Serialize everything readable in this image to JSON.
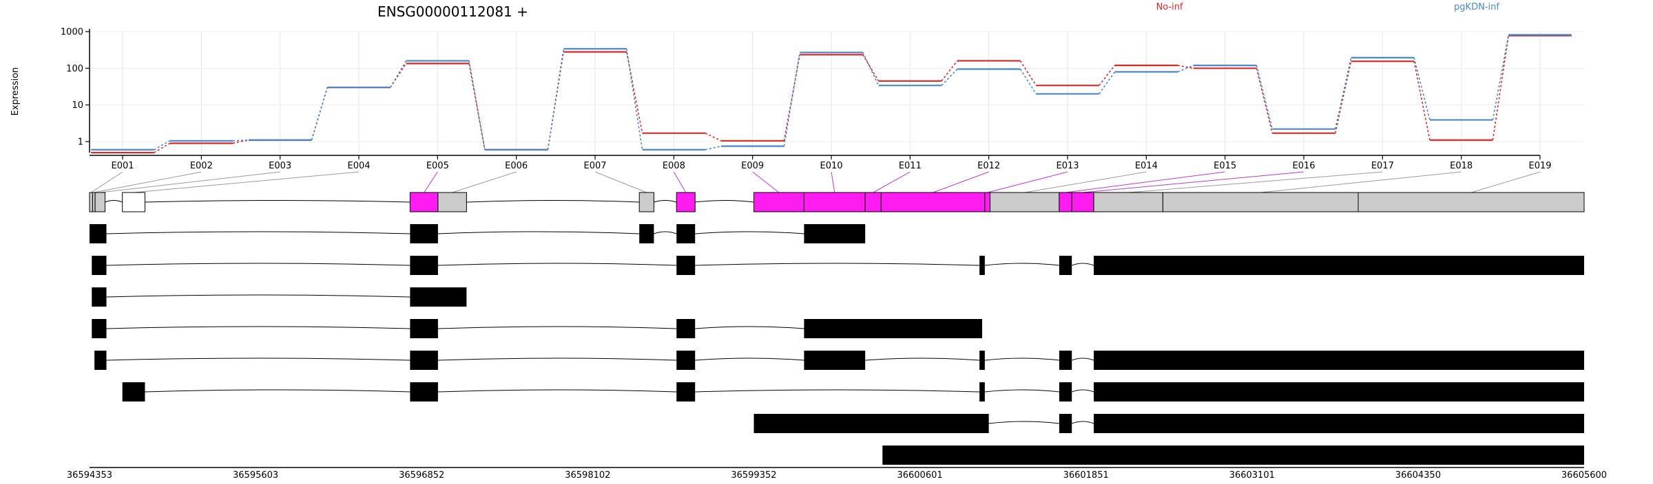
{
  "chart_data": {
    "type": "line",
    "title": "ENSG00000112081 +",
    "ylabel": "Expression",
    "y_scale": "log",
    "ylim": [
      0.5,
      1000
    ],
    "yticks": [
      1,
      10,
      100,
      1000
    ],
    "ytick_labels": [
      "1",
      "10",
      "100",
      "1000"
    ],
    "grid": true,
    "legend_position": "top",
    "categories": [
      "E001",
      "E002",
      "E003",
      "E004",
      "E005",
      "E006",
      "E007",
      "E008",
      "E009",
      "E010",
      "E011",
      "E012",
      "E013",
      "E014",
      "E015",
      "E016",
      "E017",
      "E018",
      "E019"
    ],
    "series": [
      {
        "name": "No-inf",
        "color": "#d62728",
        "values": [
          0.5,
          0.9,
          1.1,
          30,
          135,
          0.6,
          280,
          1.7,
          1.05,
          235,
          45,
          160,
          34,
          120,
          100,
          1.7,
          155,
          1.1,
          780
        ]
      },
      {
        "name": "pgKDN-inf",
        "color": "#4a86c8",
        "values": [
          0.6,
          1.05,
          1.1,
          30,
          160,
          0.6,
          340,
          0.6,
          0.75,
          270,
          34,
          95,
          20,
          80,
          120,
          2.2,
          195,
          3.9,
          820
        ]
      }
    ],
    "genomic_axis": {
      "min": 36594353,
      "max": 36605600,
      "tick_labels": [
        "36594353",
        "36595603",
        "36596852",
        "36598102",
        "36599352",
        "36600601",
        "36601851",
        "36603101",
        "36604350",
        "36605600"
      ]
    },
    "gene_model": {
      "exons": [
        {
          "id": "E001",
          "start": 36594353,
          "end": 36594376,
          "highlighted": false
        },
        {
          "id": "E002",
          "start": 36594376,
          "end": 36594395,
          "highlighted": false
        },
        {
          "id": "E003",
          "start": 36594395,
          "end": 36594470,
          "highlighted": false
        },
        {
          "id": "E004",
          "start": 36594600,
          "end": 36594770,
          "highlighted": false
        },
        {
          "id": "E005",
          "start": 36596765,
          "end": 36596975,
          "highlighted": true
        },
        {
          "id": "E006",
          "start": 36596975,
          "end": 36597190,
          "highlighted": false
        },
        {
          "id": "E007",
          "start": 36598490,
          "end": 36598600,
          "highlighted": false
        },
        {
          "id": "E008",
          "start": 36598770,
          "end": 36598910,
          "highlighted": true
        },
        {
          "id": "E009",
          "start": 36599352,
          "end": 36599730,
          "highlighted": true
        },
        {
          "id": "E010",
          "start": 36599730,
          "end": 36600190,
          "highlighted": true
        },
        {
          "id": "E011",
          "start": 36600190,
          "end": 36600310,
          "highlighted": true
        },
        {
          "id": "E012",
          "start": 36600310,
          "end": 36601090,
          "highlighted": true
        },
        {
          "id": "E013",
          "start": 36601090,
          "end": 36601130,
          "highlighted": true
        },
        {
          "id": "E014",
          "start": 36601130,
          "end": 36601650,
          "highlighted": false
        },
        {
          "id": "E015",
          "start": 36601650,
          "end": 36601745,
          "highlighted": true
        },
        {
          "id": "E016",
          "start": 36601745,
          "end": 36601910,
          "highlighted": true
        },
        {
          "id": "E017",
          "start": 36601910,
          "end": 36602430,
          "highlighted": false
        },
        {
          "id": "E018",
          "start": 36602430,
          "end": 36603900,
          "highlighted": false
        },
        {
          "id": "E019",
          "start": 36603900,
          "end": 36605600,
          "highlighted": false
        }
      ],
      "transcripts": [
        [
          [
            36594353,
            36594480
          ],
          [
            36596765,
            36596975
          ],
          [
            36598490,
            36598600
          ],
          [
            36598770,
            36598910
          ],
          [
            36599730,
            36600190
          ]
        ],
        [
          [
            36594370,
            36594480
          ],
          [
            36596765,
            36596975
          ],
          [
            36598770,
            36598910
          ],
          [
            36601050,
            36601090
          ],
          [
            36601650,
            36601745
          ],
          [
            36601910,
            36605600
          ]
        ],
        [
          [
            36594370,
            36594480
          ],
          [
            36596765,
            36597190
          ]
        ],
        [
          [
            36594370,
            36594480
          ],
          [
            36596765,
            36596975
          ],
          [
            36598770,
            36598910
          ],
          [
            36599730,
            36601070
          ]
        ],
        [
          [
            36594390,
            36594480
          ],
          [
            36596765,
            36596975
          ],
          [
            36598770,
            36598910
          ],
          [
            36599730,
            36600190
          ],
          [
            36601050,
            36601090
          ],
          [
            36601650,
            36601745
          ],
          [
            36601910,
            36605600
          ]
        ],
        [
          [
            36594600,
            36594770
          ],
          [
            36596765,
            36596975
          ],
          [
            36598770,
            36598910
          ],
          [
            36601050,
            36601090
          ],
          [
            36601650,
            36601745
          ],
          [
            36601910,
            36605600
          ]
        ],
        [
          [
            36599352,
            36601120
          ],
          [
            36601650,
            36601745
          ],
          [
            36601910,
            36605600
          ]
        ],
        [
          [
            36600320,
            36605600
          ]
        ]
      ]
    }
  }
}
